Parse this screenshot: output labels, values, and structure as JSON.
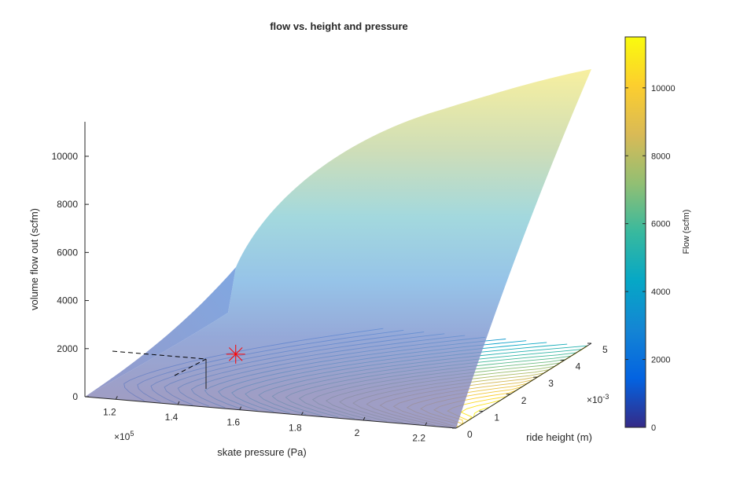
{
  "chart_data": {
    "type": "surface",
    "title": "flow vs. height and pressure",
    "xlabel": "skate pressure (Pa)",
    "ylabel": "ride height (m)",
    "zlabel": "volume flow out (scfm)",
    "x_exponent": "×10",
    "x_exponent_power": "5",
    "y_exponent": "×10",
    "y_exponent_power": "-3",
    "xlim": [
      1.1,
      2.3
    ],
    "ylim": [
      0,
      5
    ],
    "zlim": [
      0,
      11500
    ],
    "x_ticks": [
      "1.2",
      "1.4",
      "1.6",
      "1.8",
      "2",
      "2.2"
    ],
    "y_ticks": [
      "0",
      "1",
      "2",
      "3",
      "4",
      "5"
    ],
    "z_ticks": [
      "0",
      "2000",
      "4000",
      "6000",
      "8000",
      "10000"
    ],
    "colorbar": {
      "label": "Flow (scfm)",
      "range": [
        0,
        11500
      ],
      "ticks": [
        "0",
        "2000",
        "4000",
        "6000",
        "8000",
        "10000"
      ],
      "colormap": "parula",
      "colors": [
        "#352a87",
        "#0363e1",
        "#1485d4",
        "#06a7c6",
        "#38b99e",
        "#92bf73",
        "#d9ba56",
        "#fcce2e",
        "#f9fb0e"
      ]
    },
    "marker": {
      "x": 1.5,
      "y": 1.0,
      "z": 1500,
      "symbol": "asterisk",
      "color": "#ff0000"
    },
    "contour_levels": 27,
    "grid": false
  }
}
